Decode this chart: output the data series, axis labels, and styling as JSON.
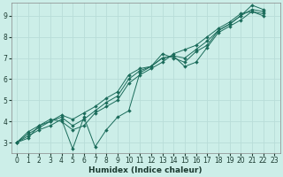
{
  "xlabel": "Humidex (Indice chaleur)",
  "xlim": [
    -0.5,
    23.5
  ],
  "ylim": [
    2.5,
    9.6
  ],
  "xticks": [
    0,
    1,
    2,
    3,
    4,
    5,
    6,
    7,
    8,
    9,
    10,
    11,
    12,
    13,
    14,
    15,
    16,
    17,
    18,
    19,
    20,
    21,
    22,
    23
  ],
  "yticks": [
    3,
    4,
    5,
    6,
    7,
    8,
    9
  ],
  "bg_color": "#cceee8",
  "grid_color": "#b8ddd8",
  "line_color": "#1a6b5a",
  "series": [
    [
      3.0,
      3.3,
      3.6,
      3.8,
      4.1,
      2.7,
      4.2,
      2.8,
      3.6,
      4.2,
      4.5,
      6.3,
      6.6,
      7.0,
      7.1,
      6.6,
      6.8,
      7.5,
      8.2,
      8.5,
      8.8,
      9.2,
      9.1
    ],
    [
      3.0,
      3.5,
      3.8,
      4.0,
      4.3,
      4.1,
      4.4,
      4.7,
      5.1,
      5.4,
      6.2,
      6.5,
      6.6,
      7.2,
      7.0,
      6.8,
      7.3,
      7.6,
      8.3,
      8.6,
      9.0,
      9.5,
      9.3
    ],
    [
      3.0,
      3.2,
      3.8,
      4.1,
      4.0,
      3.6,
      3.8,
      4.4,
      4.7,
      5.0,
      5.8,
      6.2,
      6.5,
      6.8,
      7.2,
      7.4,
      7.6,
      8.0,
      8.4,
      8.7,
      9.1,
      9.2,
      9.0
    ],
    [
      3.0,
      3.4,
      3.7,
      4.0,
      4.2,
      3.8,
      4.1,
      4.5,
      4.9,
      5.2,
      6.0,
      6.4,
      6.6,
      7.0,
      7.1,
      7.0,
      7.4,
      7.8,
      8.3,
      8.6,
      9.0,
      9.3,
      9.2
    ]
  ]
}
